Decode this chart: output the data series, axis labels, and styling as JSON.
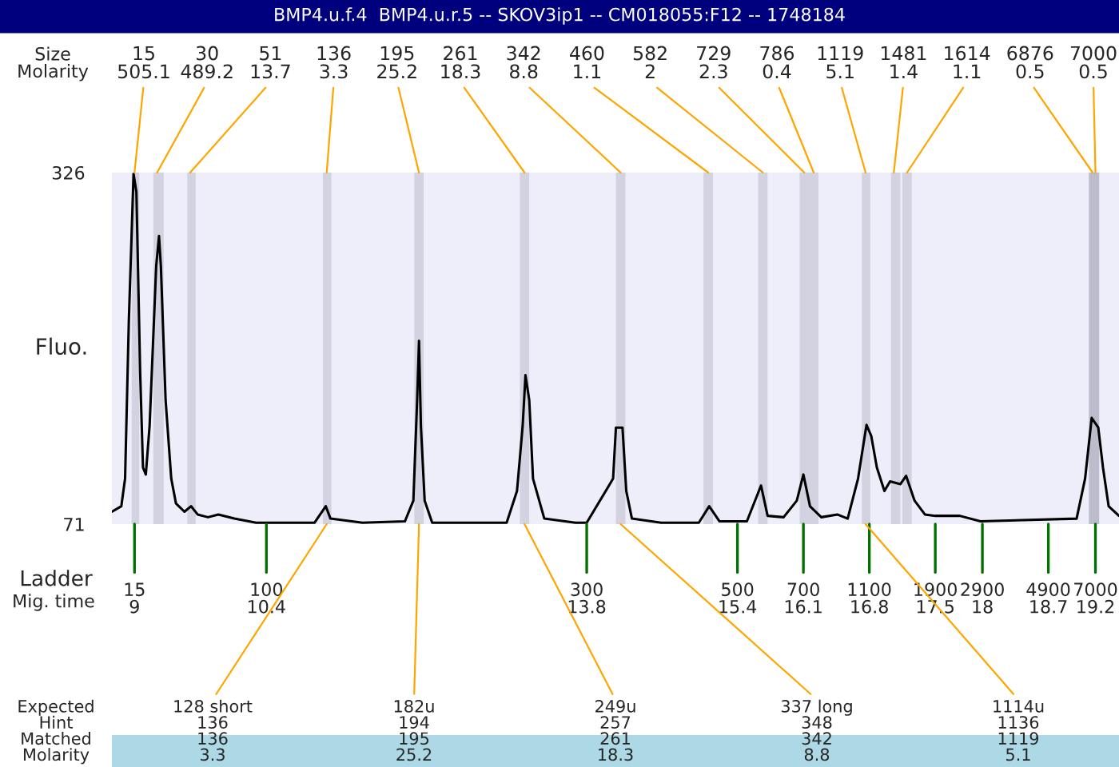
{
  "chart_data": {
    "type": "line",
    "title": "BMP4.u.f.4  BMP4.u.r.5 -- SKOV3ip1 -- CM018055:F12 -- 1748184",
    "ylabel": "Fluo.",
    "xlabel": "Mig. time",
    "x": [
      8.76,
      8.86,
      8.9,
      8.94,
      8.99,
      9.02,
      9.06,
      9.09,
      9.12,
      9.16,
      9.23,
      9.26,
      9.28,
      9.33,
      9.39,
      9.44,
      9.53,
      9.6,
      9.67,
      9.78,
      9.89,
      10.06,
      10.29,
      10.91,
      11.03,
      11.08,
      11.42,
      11.87,
      11.96,
      12.0,
      12.02,
      12.04,
      12.08,
      12.16,
      12.95,
      13.06,
      13.12,
      13.15,
      13.19,
      13.23,
      13.35,
      13.68,
      13.8,
      14.08,
      14.11,
      14.18,
      14.22,
      14.28,
      14.59,
      14.99,
      15.1,
      15.21,
      15.5,
      15.61,
      15.65,
      15.72,
      15.89,
      16.03,
      16.1,
      16.17,
      16.29,
      16.46,
      16.57,
      16.68,
      16.77,
      16.82,
      16.88,
      16.96,
      17.02,
      17.13,
      17.19,
      17.28,
      17.39,
      17.5,
      17.76,
      17.98,
      19.0,
      19.09,
      19.16,
      19.23,
      19.28,
      19.34,
      19.45
    ],
    "series": [
      {
        "color": "#000000",
        "values": [
          80,
          84,
          104,
          219,
          325,
          312,
          181,
          112,
          107,
          142,
          258,
          280,
          258,
          161,
          104,
          86,
          80,
          84,
          78,
          76,
          78,
          75,
          72,
          72,
          84,
          75,
          72,
          73,
          88,
          161,
          204,
          142,
          88,
          72,
          72,
          95,
          142,
          179,
          161,
          104,
          75,
          72,
          72,
          104,
          141,
          141,
          95,
          75,
          72,
          72,
          84,
          73,
          73,
          92,
          99,
          77,
          76,
          88,
          107,
          84,
          76,
          78,
          75,
          104,
          143,
          135,
          112,
          95,
          102,
          100,
          106,
          88,
          78,
          77,
          77,
          73,
          75,
          104,
          148,
          141,
          112,
          84,
          77
        ]
      }
    ],
    "xlim": [
      8.76,
      19.45
    ],
    "ylim": [
      71,
      326
    ],
    "yticks": [
      71,
      326
    ],
    "xticks": [
      9,
      10.4,
      13.8,
      15.4,
      16.1,
      16.8,
      17.5,
      18,
      18.7,
      19.2
    ],
    "grid": false,
    "bands": [
      {
        "axis": "x",
        "from": 8.97,
        "to": 9.05,
        "color": "#d2d2e0"
      },
      {
        "axis": "x",
        "from": 9.2,
        "to": 9.31,
        "color": "#d2d2e0"
      },
      {
        "axis": "x",
        "from": 9.56,
        "to": 9.65,
        "color": "#d2d2e0"
      },
      {
        "axis": "x",
        "from": 11.0,
        "to": 11.09,
        "color": "#d2d2e0"
      },
      {
        "axis": "x",
        "from": 11.97,
        "to": 12.07,
        "color": "#d2d2e0"
      },
      {
        "axis": "x",
        "from": 13.09,
        "to": 13.19,
        "color": "#d2d2e0"
      },
      {
        "axis": "x",
        "from": 14.11,
        "to": 14.21,
        "color": "#d2d2e0"
      },
      {
        "axis": "x",
        "from": 15.04,
        "to": 15.14,
        "color": "#d2d2e0"
      },
      {
        "axis": "x",
        "from": 15.62,
        "to": 15.72,
        "color": "#d2d2e0"
      },
      {
        "axis": "x",
        "from": 16.06,
        "to": 16.26,
        "color": "#d2d2e0"
      },
      {
        "axis": "x",
        "from": 16.72,
        "to": 16.81,
        "color": "#d2d2e0"
      },
      {
        "axis": "x",
        "from": 17.03,
        "to": 17.13,
        "color": "#d2d2e0"
      },
      {
        "axis": "x",
        "from": 17.15,
        "to": 17.25,
        "color": "#d2d2e0"
      },
      {
        "axis": "x",
        "from": 19.13,
        "to": 19.24,
        "color": "#bcbccc"
      }
    ],
    "annotations": [
      "Size\nMolarity",
      "Expected\nHint\nMatched\nMolarity",
      "Ladder",
      {
        "text": "15",
        "x": 9,
        "y": 71
      },
      {
        "text": "100",
        "x": 10.4,
        "y": 71
      },
      {
        "text": "300",
        "x": 13.8,
        "y": 71
      },
      {
        "text": "500",
        "x": 15.4,
        "y": 71
      },
      {
        "text": "700",
        "x": 16.1,
        "y": 71
      },
      {
        "text": "1100",
        "x": 16.8,
        "y": 71
      },
      {
        "text": "1900",
        "x": 17.5,
        "y": 71
      },
      {
        "text": "2900",
        "x": 18,
        "y": 71
      },
      {
        "text": "4900",
        "x": 18.7,
        "y": 71
      },
      {
        "text": "7000",
        "x": 19.2,
        "y": 71
      },
      {
        "text": "15\n505.1",
        "x": 9.0,
        "y": 326
      },
      {
        "text": "30\n489.2",
        "x": 9.24,
        "y": 326
      },
      {
        "text": "51\n13.7",
        "x": 9.59,
        "y": 326
      },
      {
        "text": "136\n3.3",
        "x": 11.04,
        "y": 326
      },
      {
        "text": "195\n25.2",
        "x": 12.02,
        "y": 326
      },
      {
        "text": "261\n18.3",
        "x": 13.14,
        "y": 326
      },
      {
        "text": "342\n8.8",
        "x": 14.16,
        "y": 326
      },
      {
        "text": "460\n1.1",
        "x": 15.09,
        "y": 326
      },
      {
        "text": "582\n2",
        "x": 15.67,
        "y": 326
      },
      {
        "text": "729\n2.3",
        "x": 16.11,
        "y": 326
      },
      {
        "text": "786\n0.4",
        "x": 16.21,
        "y": 326
      },
      {
        "text": "1119\n5.1",
        "x": 16.76,
        "y": 326
      },
      {
        "text": "1481\n1.4",
        "x": 17.06,
        "y": 326
      },
      {
        "text": "1614\n1.1",
        "x": 17.2,
        "y": 326
      },
      {
        "text": "6876\n0.5",
        "x": 19.17,
        "y": 326
      },
      {
        "text": "7000\n0.5",
        "x": 19.2,
        "y": 326
      },
      {
        "text": "128 short\n136\n136\n3.3",
        "x": 11.04,
        "y": 71
      },
      {
        "text": "182u\n194\n195\n25.2",
        "x": 12.02,
        "y": 71
      },
      {
        "text": "249u\n257\n261\n18.3",
        "x": 13.14,
        "y": 71
      },
      {
        "text": "337 long\n348\n342\n8.8",
        "x": 14.16,
        "y": 71
      },
      {
        "text": "1114u\n1136\n1119\n5.1",
        "x": 16.76,
        "y": 71
      }
    ]
  }
}
